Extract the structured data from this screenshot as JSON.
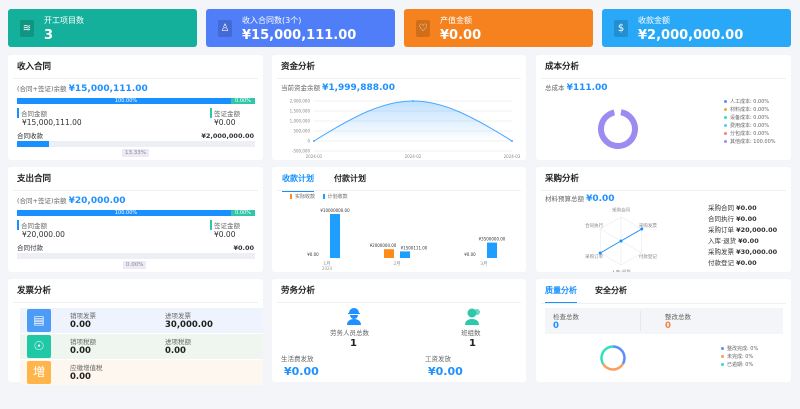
{
  "summary_cards": [
    {
      "label": "开工项目数",
      "value": "3",
      "color": "#14b09b",
      "icon": "layers-icon"
    },
    {
      "label": "收入合同数(3个)",
      "value": "¥15,000,111.00",
      "color": "#4f7ef8",
      "icon": "stamp-icon"
    },
    {
      "label": "产值金额",
      "value": "¥0.00",
      "color": "#f5821f",
      "icon": "heart-shield-icon"
    },
    {
      "label": "收款金额",
      "value": "¥2,000,000.00",
      "color": "#2aa8f8",
      "icon": "money-bag-icon"
    }
  ],
  "income_contract": {
    "title": "收入合同",
    "balance_label": "(合同+签证)余额",
    "balance": "¥15,000,111.00",
    "contract_pct_label": "100.00%",
    "contract_pct": 100,
    "visa_pct_label": "0.00%",
    "contract_amount_label": "合同金额",
    "contract_amount": "¥15,000,111.00",
    "visa_amount_label": "签证金额",
    "visa_amount": "¥0.00",
    "receipt_label": "合同收款",
    "receipt_amount": "¥2,000,000.00",
    "receipt_pct": 13.33,
    "receipt_pct_label": "13.33%"
  },
  "expense_contract": {
    "title": "支出合同",
    "balance_label": "(合同+签证)余额",
    "balance": "¥20,000.00",
    "contract_pct_label": "100.00%",
    "contract_pct": 100,
    "visa_pct_label": "0.00%",
    "contract_amount_label": "合同金额",
    "contract_amount": "¥20,000.00",
    "visa_amount_label": "签证金额",
    "visa_amount": "¥0.00",
    "payment_label": "合同付款",
    "payment_amount": "¥0.00",
    "payment_pct": 0,
    "payment_pct_label": "0.00%"
  },
  "fund_analysis": {
    "title": "资金分析",
    "balance_label": "当前资金余额",
    "balance": "¥1,999,888.00",
    "chart_data": {
      "type": "area",
      "x": [
        "2024-01",
        "2024-02",
        "2024-03"
      ],
      "values": [
        0,
        1999888,
        0
      ],
      "yticks": [
        "2,000,000",
        "1,500,000",
        "1,000,000",
        "500,000",
        "0",
        "-500,000"
      ],
      "ylim": [
        -500000,
        2000000
      ],
      "color": "#4aa8ff"
    }
  },
  "cost_analysis": {
    "title": "成本分析",
    "total_label": "总成本",
    "total": "¥111.00",
    "chart_data": {
      "type": "pie",
      "legend": [
        {
          "label": "人工成本: 0.00%",
          "value": 0,
          "color": "#5b8ff9"
        },
        {
          "label": "材料成本: 0.00%",
          "value": 0,
          "color": "#f6a060"
        },
        {
          "label": "设备成本: 0.00%",
          "value": 0,
          "color": "#2ee0c0"
        },
        {
          "label": "费用成本: 0.00%",
          "value": 0,
          "color": "#5ac8fa"
        },
        {
          "label": "分包成本: 0.00%",
          "value": 0,
          "color": "#ff7c7c"
        },
        {
          "label": "其他成本: 100.00%",
          "value": 100,
          "color": "#9b8cf2"
        }
      ]
    }
  },
  "plan": {
    "tabs": [
      "收款计划",
      "付款计划"
    ],
    "legend": [
      {
        "label": "实际收款",
        "color": "#ff8c1a"
      },
      {
        "label": "计划收款",
        "color": "#1e9fff"
      }
    ],
    "chart_data": {
      "type": "bar",
      "categories": [
        "1月",
        "2月",
        "3月"
      ],
      "category_sub": "2024",
      "series": [
        {
          "name": "实际收款",
          "values": [
            0,
            2000000,
            0
          ],
          "labels": [
            "¥0.00",
            "¥2000000.00",
            "¥0.00"
          ]
        },
        {
          "name": "计划收款",
          "values": [
            10000000,
            1500111,
            3500000
          ],
          "labels": [
            "¥10000000.00",
            "¥1500111.00",
            "¥3500000.00"
          ]
        }
      ]
    }
  },
  "purchase": {
    "title": "采购分析",
    "budget_label": "材料预算总额",
    "budget": "¥0.00",
    "radar_axes": [
      "采购合同",
      "采购发票",
      "付款登记",
      "入库·退货",
      "采购订单",
      "合同执行"
    ],
    "radar_values": [
      0,
      1,
      0,
      0,
      1,
      0
    ],
    "items": [
      {
        "label": "采购合同",
        "value": "¥0.00"
      },
      {
        "label": "合同执行",
        "value": "¥0.00"
      },
      {
        "label": "采购订单",
        "value": "¥20,000.00"
      },
      {
        "label": "入库·退货",
        "value": "¥0.00"
      },
      {
        "label": "采购发票",
        "value": "¥30,000.00"
      },
      {
        "label": "付款登记",
        "value": "¥0.00"
      }
    ]
  },
  "invoice": {
    "title": "发票分析",
    "rows": [
      {
        "bg": "#eef3fd",
        "icon_color": "#4c9bf5",
        "icon": "receipt-icon",
        "cells": [
          {
            "k": "销项发票",
            "v": "0.00"
          },
          {
            "k": "进项发票",
            "v": "30,000.00"
          }
        ]
      },
      {
        "bg": "#eef6ef",
        "icon_color": "#20c9a5",
        "icon": "hand-coin-icon",
        "cells": [
          {
            "k": "销项税额",
            "v": "0.00"
          },
          {
            "k": "进项税额",
            "v": "0.00"
          }
        ]
      },
      {
        "bg": "#fdf7f0",
        "icon_color": "#ffb54a",
        "icon": "vat-icon",
        "cells": [
          {
            "k": "应缴增值税",
            "v": "0.00"
          }
        ]
      }
    ]
  },
  "labor": {
    "title": "劳务分析",
    "workers_label": "劳务人员总数",
    "workers": "1",
    "teams_label": "班组数",
    "teams": "1",
    "living_label": "生活费发放",
    "living": "¥0.00",
    "wage_label": "工资发放",
    "wage": "¥0.00"
  },
  "quality": {
    "tabs": [
      "质量分析",
      "安全分析"
    ],
    "check_label": "检查总数",
    "check": "0",
    "rectify_label": "整改总数",
    "rectify": "0",
    "legend": [
      {
        "label": "整改完成: 0%",
        "color": "#5b8ff9"
      },
      {
        "label": "未完成: 0%",
        "color": "#f6a060"
      },
      {
        "label": "已逾期: 0%",
        "color": "#2ee0c0"
      }
    ]
  }
}
